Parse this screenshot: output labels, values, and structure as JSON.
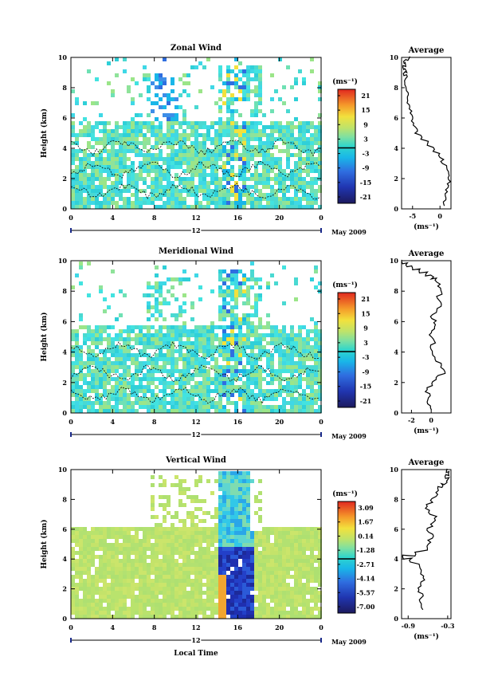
{
  "x_label": "Local Time",
  "date_label": "May 2009",
  "day_label": "12",
  "unit_label": "(ms⁻¹)",
  "avg_title": "Average",
  "height_label": "Height (km)",
  "panels": [
    {
      "title": "Zonal Wind",
      "cbar_ticks": [
        "21",
        "15",
        "9",
        "3",
        "-3",
        "-9",
        "-15",
        "-21"
      ],
      "avg_xticks": [
        "-5",
        "0"
      ]
    },
    {
      "title": "Meridional Wind",
      "cbar_ticks": [
        "21",
        "15",
        "9",
        "3",
        "-3",
        "-9",
        "-15",
        "-21"
      ],
      "avg_xticks": [
        "-2",
        "0"
      ]
    },
    {
      "title": "Vertical Wind",
      "cbar_ticks": [
        "3.09",
        "1.67",
        "0.14",
        "-1.28",
        "-2.71",
        "-4.14",
        "-5.57",
        "-7.00"
      ],
      "avg_xticks": [
        "-0.9",
        "-0.3"
      ]
    }
  ],
  "chart_data": [
    {
      "type": "heatmap",
      "title": "Zonal Wind",
      "xlabel": "",
      "ylabel": "Height (km)",
      "x_ticks": [
        "0",
        "4",
        "8",
        "12",
        "16",
        "20",
        "0"
      ],
      "y_ticks": [
        "0",
        "2",
        "4",
        "6",
        "8",
        "10"
      ],
      "xlim": [
        0,
        24
      ],
      "ylim": [
        0,
        10
      ],
      "colorbar": {
        "label": "(ms⁻¹)",
        "ticks": [
          21,
          15,
          9,
          3,
          -3,
          -9,
          -15,
          -21
        ]
      }
    },
    {
      "type": "line",
      "title": "Average",
      "xlabel": "(ms⁻¹)",
      "ylabel": "",
      "x_ticks": [
        "-5",
        "0"
      ],
      "y_ticks": [
        "0",
        "2",
        "4",
        "6",
        "8",
        "10"
      ],
      "xlim": [
        -7,
        2
      ],
      "ylim": [
        0,
        10
      ],
      "series": [
        {
          "x": [
            0.6,
            0.9,
            1.2,
            1.5,
            1.7,
            1.6,
            1.1,
            0.4,
            -0.3,
            -1.2,
            -2.3,
            -3.4,
            -4.3,
            -4.7,
            -5.0,
            -5.2,
            -5.6,
            -5.9,
            -5.7,
            -6.2,
            -6.4,
            -6.0,
            -6.6,
            -6.3,
            -6.8,
            -6.1,
            -6.5,
            -5.7
          ],
          "y": [
            0.2,
            0.6,
            1.0,
            1.4,
            1.8,
            2.2,
            2.6,
            3.0,
            3.4,
            3.8,
            4.2,
            4.6,
            5.0,
            5.4,
            5.8,
            6.2,
            6.6,
            7.0,
            7.4,
            7.8,
            8.2,
            8.6,
            8.8,
            9.0,
            9.2,
            9.4,
            9.6,
            9.8
          ]
        }
      ]
    },
    {
      "type": "heatmap",
      "title": "Meridional Wind",
      "xlabel": "",
      "ylabel": "Height (km)",
      "x_ticks": [
        "0",
        "4",
        "8",
        "12",
        "16",
        "20",
        "0"
      ],
      "y_ticks": [
        "0",
        "2",
        "4",
        "6",
        "8",
        "10"
      ],
      "xlim": [
        0,
        24
      ],
      "ylim": [
        0,
        10
      ],
      "colorbar": {
        "label": "(ms⁻¹)",
        "ticks": [
          21,
          15,
          9,
          3,
          -3,
          -9,
          -15,
          -21
        ]
      }
    },
    {
      "type": "line",
      "title": "Average",
      "xlabel": "(ms⁻¹)",
      "ylabel": "",
      "x_ticks": [
        "-2",
        "0"
      ],
      "y_ticks": [
        "0",
        "2",
        "4",
        "6",
        "8",
        "10"
      ],
      "xlim": [
        -3,
        2
      ],
      "ylim": [
        0,
        10
      ],
      "series": [
        {
          "x": [
            -0.1,
            -0.4,
            -0.2,
            -0.5,
            0.1,
            0.6,
            1.3,
            1.0,
            0.5,
            0.2,
            0.0,
            0.3,
            -0.1,
            0.2,
            0.4,
            0.0,
            0.6,
            0.9,
            0.7,
            1.1,
            0.8,
            0.5,
            0.1,
            -0.5,
            -1.2,
            -1.9,
            -2.5,
            -2.9
          ],
          "y": [
            0.2,
            0.6,
            1.0,
            1.4,
            1.8,
            2.2,
            2.6,
            3.0,
            3.4,
            3.8,
            4.2,
            4.6,
            5.0,
            5.4,
            5.8,
            6.2,
            6.6,
            7.0,
            7.4,
            7.8,
            8.2,
            8.6,
            8.8,
            9.0,
            9.2,
            9.4,
            9.6,
            9.8
          ]
        }
      ]
    },
    {
      "type": "heatmap",
      "title": "Vertical Wind",
      "xlabel": "Local Time",
      "ylabel": "Height (km)",
      "x_ticks": [
        "0",
        "4",
        "8",
        "12",
        "16",
        "20",
        "0"
      ],
      "y_ticks": [
        "0",
        "2",
        "4",
        "6",
        "8",
        "10"
      ],
      "xlim": [
        0,
        24
      ],
      "ylim": [
        0,
        10
      ],
      "colorbar": {
        "label": "(ms⁻¹)",
        "ticks": [
          3.09,
          1.67,
          0.14,
          -1.28,
          -2.71,
          -4.14,
          -5.57,
          -7.0
        ]
      }
    },
    {
      "type": "line",
      "title": "Average",
      "xlabel": "(ms⁻¹)",
      "ylabel": "",
      "x_ticks": [
        "-0.9",
        "-0.3"
      ],
      "y_ticks": [
        "0",
        "2",
        "4",
        "6",
        "8",
        "10"
      ],
      "xlim": [
        -1.0,
        -0.25
      ],
      "ylim": [
        0,
        10
      ],
      "series": [
        {
          "x": [
            -0.69,
            -0.72,
            -0.68,
            -0.73,
            -0.7,
            -0.66,
            -0.71,
            -0.74,
            -0.86,
            -0.98,
            -0.8,
            -0.63,
            -0.58,
            -0.52,
            -0.6,
            -0.54,
            -0.48,
            -0.57,
            -0.62,
            -0.55,
            -0.47,
            -0.43,
            -0.38,
            -0.33,
            -0.3,
            -0.34,
            -0.28,
            -0.31
          ],
          "y": [
            0.6,
            1.0,
            1.4,
            1.8,
            2.2,
            2.6,
            3.0,
            3.4,
            3.8,
            4.0,
            4.2,
            4.6,
            5.0,
            5.4,
            5.8,
            6.2,
            6.6,
            7.0,
            7.4,
            7.8,
            8.2,
            8.6,
            8.8,
            9.0,
            9.2,
            9.4,
            9.6,
            9.8
          ]
        }
      ]
    }
  ]
}
